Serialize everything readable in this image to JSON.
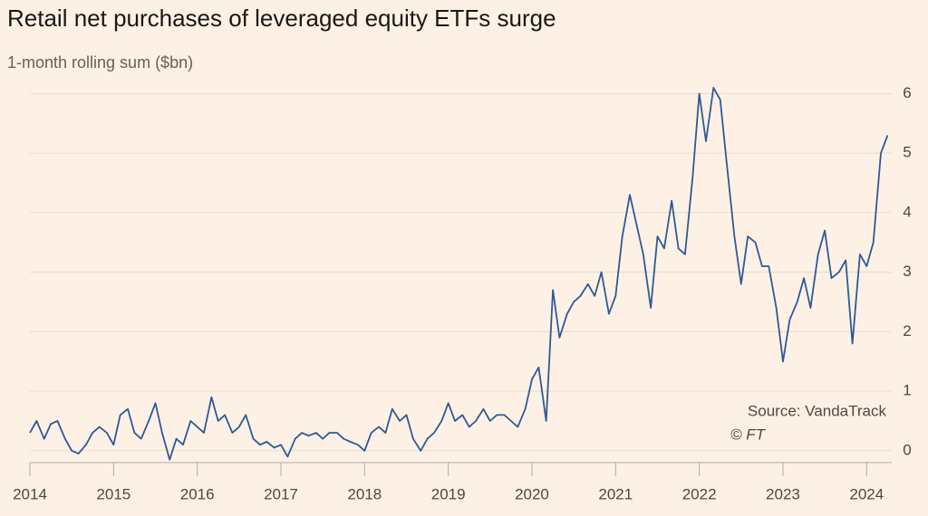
{
  "chart_data": {
    "type": "line",
    "title": "Retail net purchases of leveraged equity ETFs surge",
    "subtitle": "1-month rolling sum ($bn)",
    "source": "Source: VandaTrack",
    "credit": "© FT",
    "x": [
      2014,
      2014.08,
      2014.17,
      2014.25,
      2014.33,
      2014.42,
      2014.5,
      2014.58,
      2014.67,
      2014.75,
      2014.83,
      2014.92,
      2015,
      2015.08,
      2015.17,
      2015.25,
      2015.33,
      2015.42,
      2015.5,
      2015.58,
      2015.67,
      2015.75,
      2015.83,
      2015.92,
      2016,
      2016.08,
      2016.17,
      2016.25,
      2016.33,
      2016.42,
      2016.5,
      2016.58,
      2016.67,
      2016.75,
      2016.83,
      2016.92,
      2017,
      2017.08,
      2017.17,
      2017.25,
      2017.33,
      2017.42,
      2017.5,
      2017.58,
      2017.67,
      2017.75,
      2017.83,
      2017.92,
      2018,
      2018.08,
      2018.17,
      2018.25,
      2018.33,
      2018.42,
      2018.5,
      2018.58,
      2018.67,
      2018.75,
      2018.83,
      2018.92,
      2019,
      2019.08,
      2019.17,
      2019.25,
      2019.33,
      2019.42,
      2019.5,
      2019.58,
      2019.67,
      2019.75,
      2019.83,
      2019.92,
      2020,
      2020.08,
      2020.17,
      2020.25,
      2020.33,
      2020.42,
      2020.5,
      2020.58,
      2020.67,
      2020.75,
      2020.83,
      2020.92,
      2021,
      2021.08,
      2021.17,
      2021.25,
      2021.33,
      2021.42,
      2021.5,
      2021.58,
      2021.67,
      2021.75,
      2021.83,
      2021.92,
      2022,
      2022.08,
      2022.17,
      2022.25,
      2022.33,
      2022.42,
      2022.5,
      2022.58,
      2022.67,
      2022.75,
      2022.83,
      2022.92,
      2023,
      2023.08,
      2023.17,
      2023.25,
      2023.33,
      2023.42,
      2023.5,
      2023.58,
      2023.67,
      2023.75,
      2023.83,
      2023.92,
      2024,
      2024.08,
      2024.17,
      2024.25
    ],
    "series": [
      {
        "name": "Net purchases",
        "color": "#2e5a96",
        "values": [
          0.3,
          0.5,
          0.2,
          0.45,
          0.5,
          0.2,
          0.0,
          -0.05,
          0.1,
          0.3,
          0.4,
          0.3,
          0.1,
          0.6,
          0.7,
          0.3,
          0.2,
          0.5,
          0.8,
          0.3,
          -0.15,
          0.2,
          0.1,
          0.5,
          0.4,
          0.3,
          0.9,
          0.5,
          0.6,
          0.3,
          0.4,
          0.6,
          0.2,
          0.1,
          0.15,
          0.05,
          0.1,
          -0.1,
          0.2,
          0.3,
          0.25,
          0.3,
          0.2,
          0.3,
          0.3,
          0.2,
          0.15,
          0.1,
          0.0,
          0.3,
          0.4,
          0.3,
          0.7,
          0.5,
          0.6,
          0.2,
          0.0,
          0.2,
          0.3,
          0.5,
          0.8,
          0.5,
          0.6,
          0.4,
          0.5,
          0.7,
          0.5,
          0.6,
          0.6,
          0.5,
          0.4,
          0.7,
          1.2,
          1.4,
          0.5,
          2.7,
          1.9,
          2.3,
          2.5,
          2.6,
          2.8,
          2.6,
          3.0,
          2.3,
          2.6,
          3.6,
          4.3,
          3.8,
          3.3,
          2.4,
          3.6,
          3.4,
          4.2,
          3.4,
          3.3,
          4.6,
          6.0,
          5.2,
          6.1,
          5.9,
          4.8,
          3.6,
          2.8,
          3.6,
          3.5,
          3.1,
          3.1,
          2.4,
          1.5,
          2.2,
          2.5,
          2.9,
          2.4,
          3.3,
          3.7,
          2.9,
          3.0,
          3.2,
          1.8,
          3.3,
          3.1,
          3.5,
          5.0,
          5.3
        ]
      }
    ],
    "xlim": [
      2014,
      2024.3
    ],
    "xticks": [
      2014,
      2015,
      2016,
      2017,
      2018,
      2019,
      2020,
      2021,
      2022,
      2023,
      2024
    ],
    "ylim": [
      -0.2,
      6.6
    ],
    "yticks": [
      0,
      1,
      2,
      3,
      4,
      5,
      6
    ],
    "grid": true
  }
}
